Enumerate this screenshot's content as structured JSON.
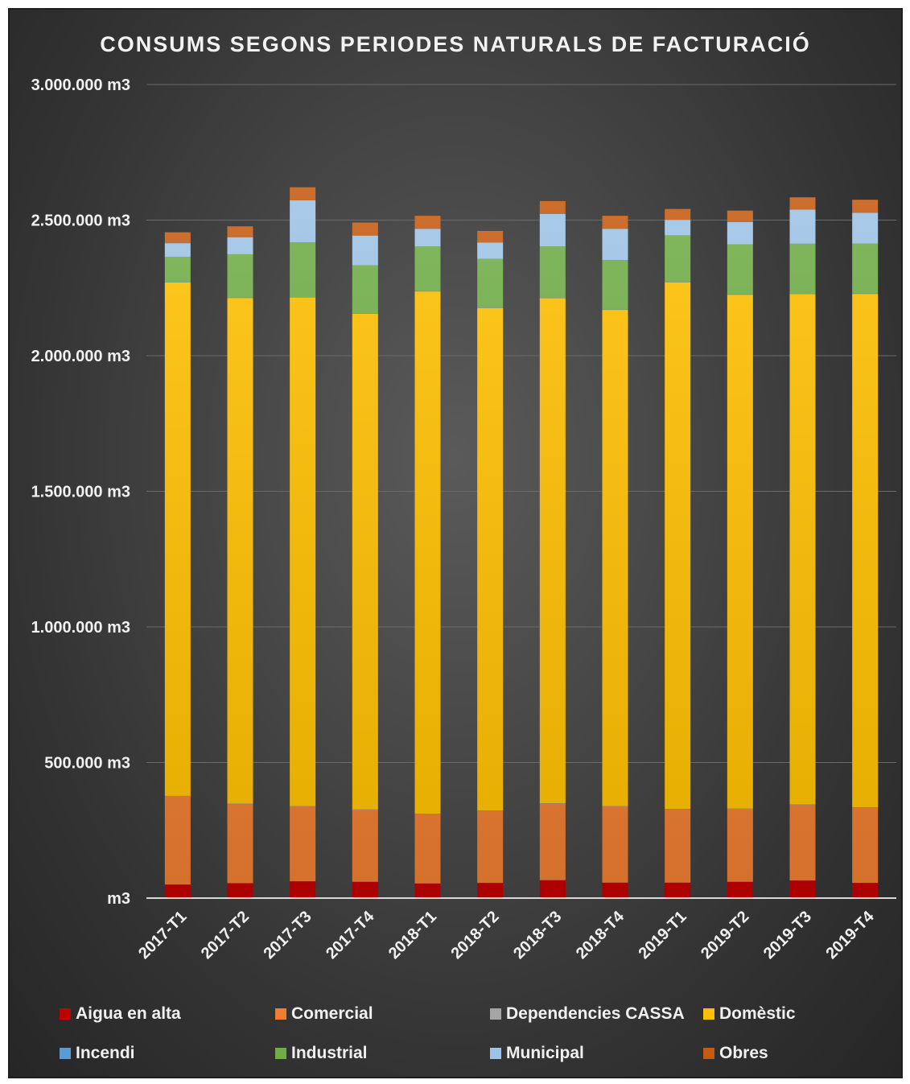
{
  "chart_data": {
    "type": "bar",
    "stacked": true,
    "title": "CONSUMS SEGONS PERIODES NATURALS DE FACTURACIÓ",
    "xlabel": "",
    "ylabel": "",
    "ylim": [
      0,
      3000000
    ],
    "yticks": [
      0,
      500000,
      1000000,
      1500000,
      2000000,
      2500000,
      3000000
    ],
    "ytick_labels": [
      "m3",
      "500.000 m3",
      "1.000.000 m3",
      "1.500.000 m3",
      "2.000.000 m3",
      "2.500.000 m3",
      "3.000.000 m3"
    ],
    "grid": true,
    "legend_position": "bottom",
    "categories": [
      "2017-T1",
      "2017-T2",
      "2017-T3",
      "2017-T4",
      "2018-T1",
      "2018-T2",
      "2018-T3",
      "2018-T4",
      "2019-T1",
      "2019-T2",
      "2019-T3",
      "2019-T4"
    ],
    "series": [
      {
        "name": "Aigua en alta",
        "color": "#c00000",
        "values": [
          50000,
          55000,
          62000,
          60000,
          54000,
          56000,
          66000,
          57000,
          57000,
          60000,
          65000,
          56000
        ]
      },
      {
        "name": "Comercial",
        "color": "#ed7d31",
        "values": [
          325000,
          292000,
          275000,
          265000,
          255000,
          265000,
          282000,
          280000,
          270000,
          268000,
          278000,
          277000
        ]
      },
      {
        "name": "Dependencies CASSA",
        "color": "#a5a5a5",
        "values": [
          2000,
          2000,
          2000,
          2000,
          2000,
          2000,
          2000,
          2000,
          2000,
          2000,
          2000,
          2000
        ]
      },
      {
        "name": "Domèstic",
        "color": "#ffc000",
        "values": [
          1893000,
          1864000,
          1876000,
          1828000,
          1926000,
          1853000,
          1862000,
          1830000,
          1942000,
          1895000,
          1882000,
          1893000
        ]
      },
      {
        "name": "Incendi",
        "color": "#5b9bd5",
        "values": [
          1000,
          1000,
          1000,
          1000,
          1000,
          1000,
          1000,
          1000,
          1000,
          1000,
          1000,
          1000
        ]
      },
      {
        "name": "Industrial",
        "color": "#70ad47",
        "values": [
          94000,
          160000,
          202000,
          177000,
          165000,
          180000,
          190000,
          183000,
          172000,
          185000,
          185000,
          185000
        ]
      },
      {
        "name": "Municipal",
        "color": "#9dc3e6",
        "values": [
          50000,
          63000,
          155000,
          110000,
          65000,
          60000,
          120000,
          115000,
          57000,
          82000,
          126000,
          113000
        ]
      },
      {
        "name": "Obres",
        "color": "#c55a11",
        "values": [
          40000,
          40000,
          48000,
          48000,
          48000,
          43000,
          47000,
          48000,
          40000,
          42000,
          45000,
          48000
        ]
      }
    ]
  }
}
